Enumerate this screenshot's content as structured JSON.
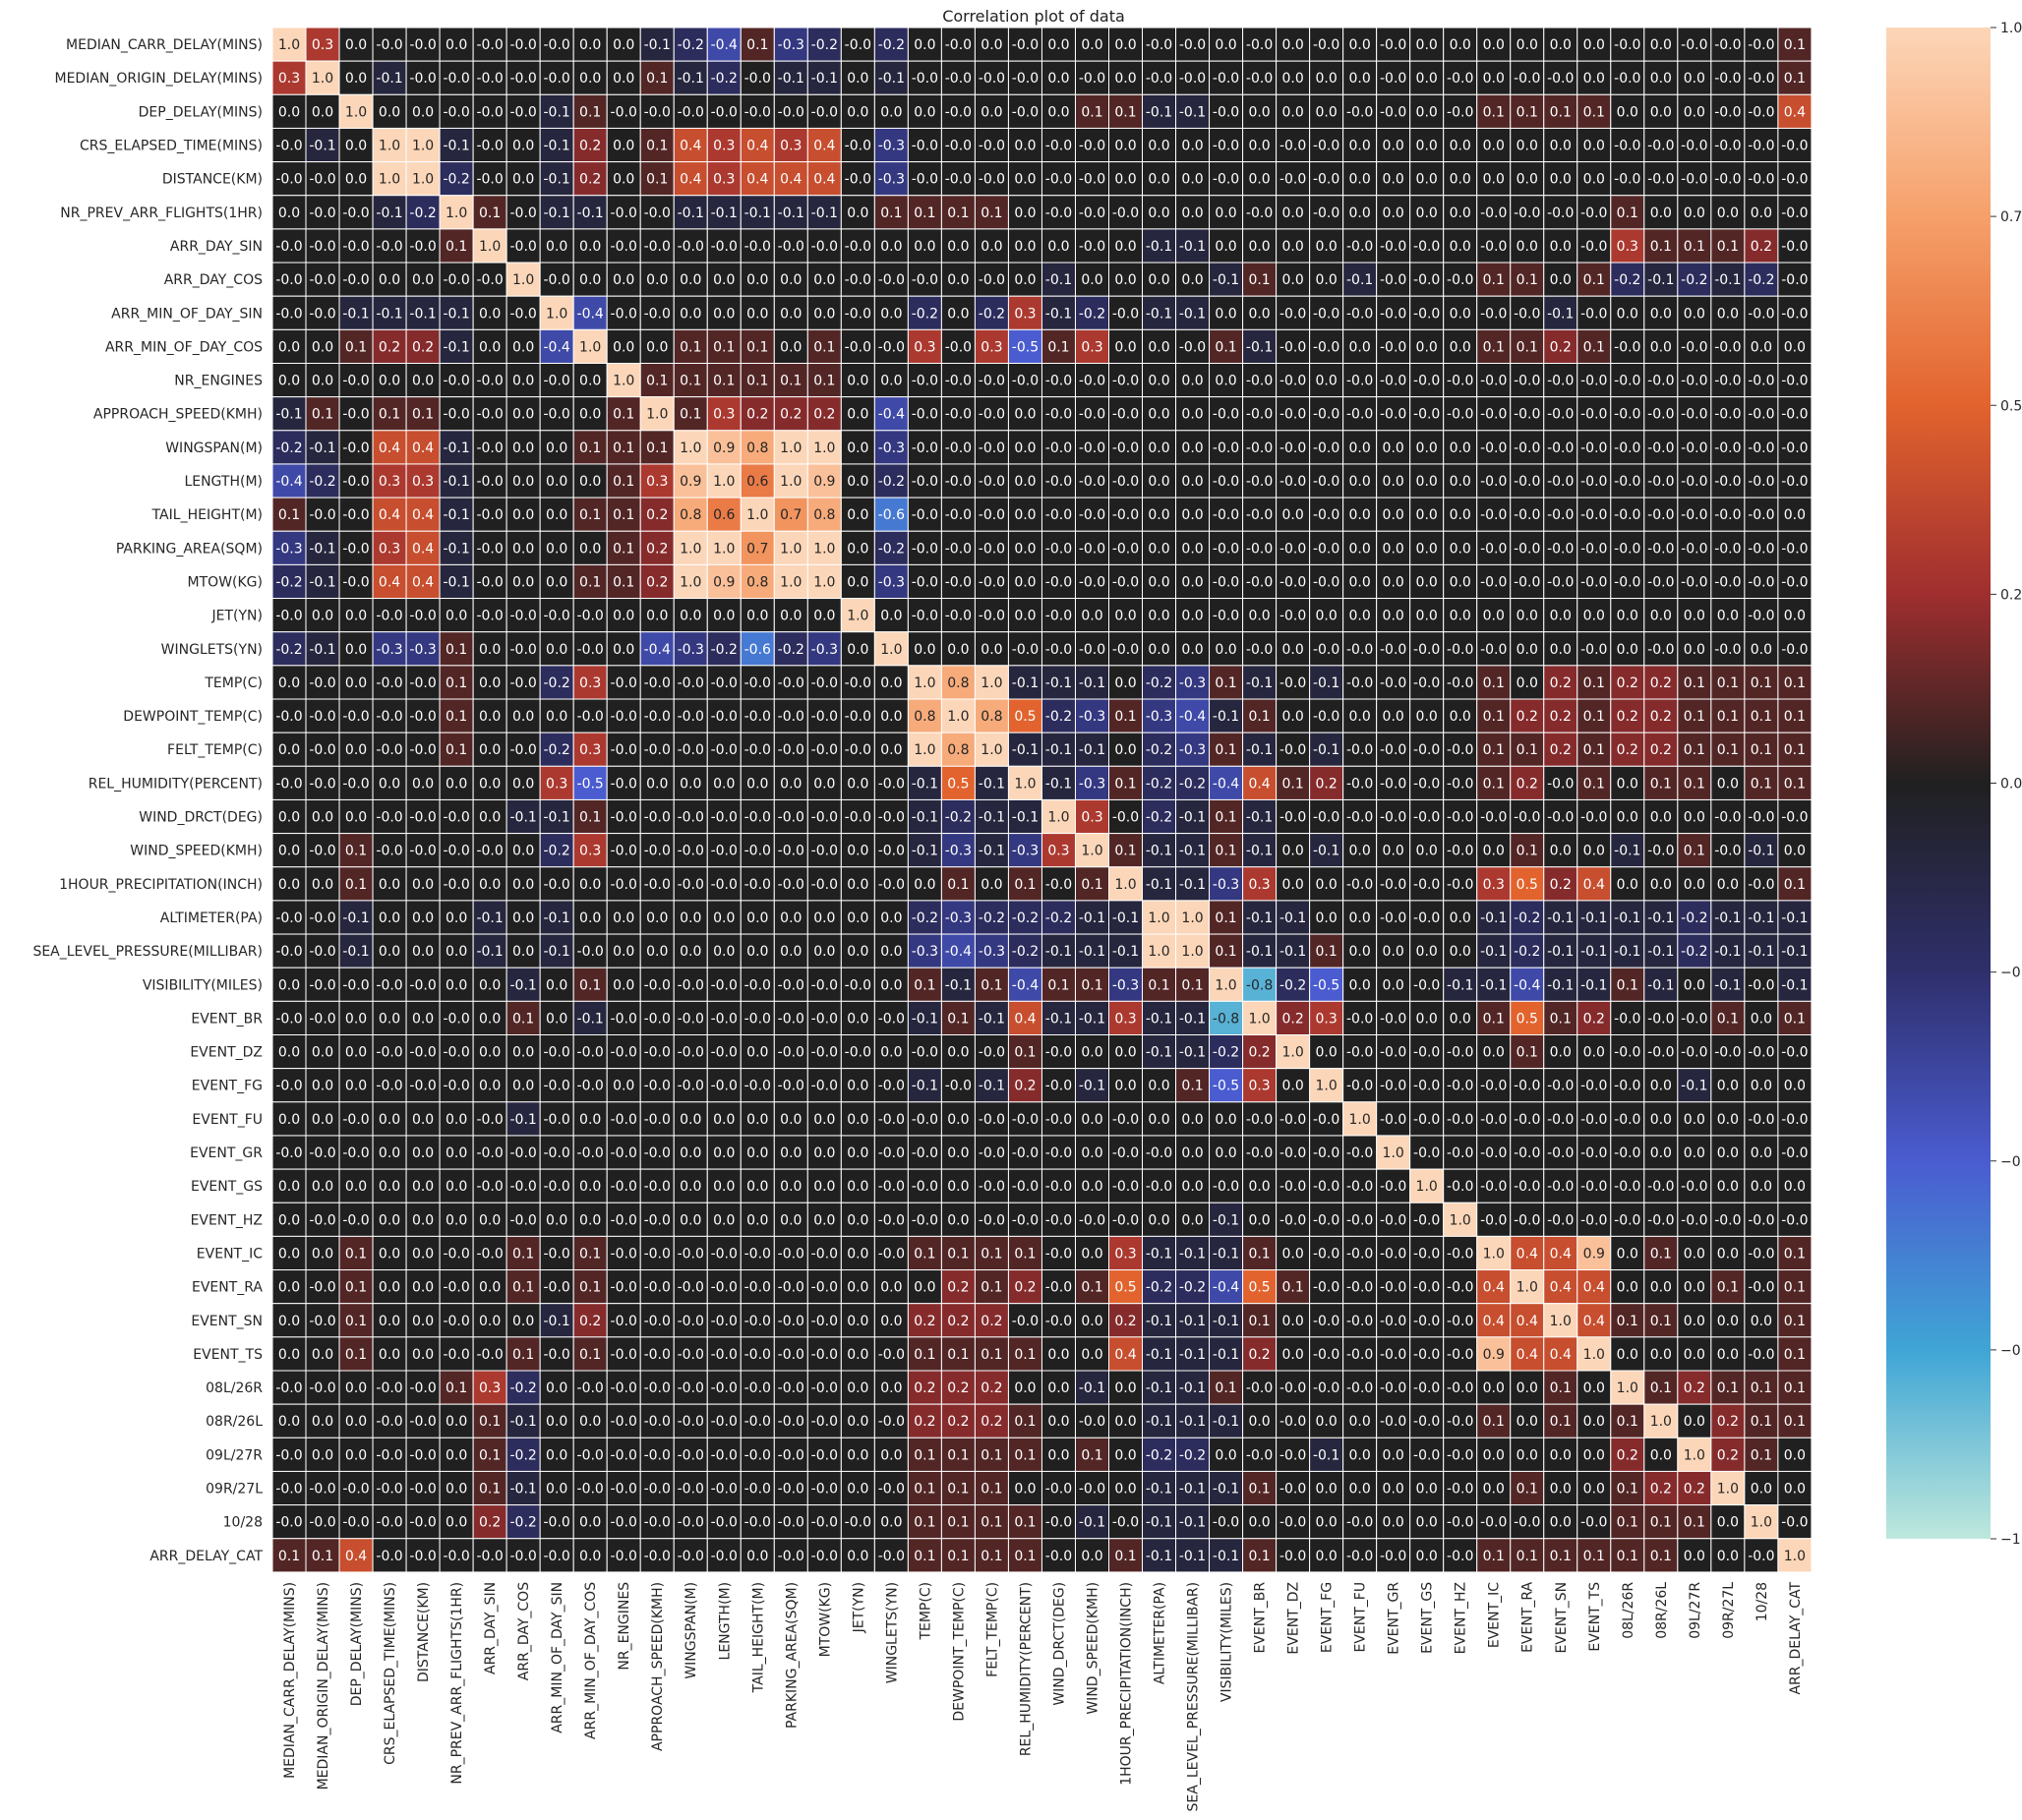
{
  "chart_data": {
    "type": "heatmap",
    "title": "Correlation plot of data",
    "labels": [
      "MEDIAN_CARR_DELAY(MINS)",
      "MEDIAN_ORIGIN_DELAY(MINS)",
      "DEP_DELAY(MINS)",
      "CRS_ELAPSED_TIME(MINS)",
      "DISTANCE(KM)",
      "NR_PREV_ARR_FLIGHTS(1HR)",
      "ARR_DAY_SIN",
      "ARR_DAY_COS",
      "ARR_MIN_OF_DAY_SIN",
      "ARR_MIN_OF_DAY_COS",
      "NR_ENGINES",
      "APPROACH_SPEED(KMH)",
      "WINGSPAN(M)",
      "LENGTH(M)",
      "TAIL_HEIGHT(M)",
      "PARKING_AREA(SQM)",
      "MTOW(KG)",
      "JET(YN)",
      "WINGLETS(YN)",
      "TEMP(C)",
      "DEWPOINT_TEMP(C)",
      "FELT_TEMP(C)",
      "REL_HUMIDITY(PERCENT)",
      "WIND_DRCT(DEG)",
      "WIND_SPEED(KMH)",
      "1HOUR_PRECIPITATION(INCH)",
      "ALTIMETER(PA)",
      "SEA_LEVEL_PRESSURE(MILLIBAR)",
      "VISIBILITY(MILES)",
      "EVENT_BR",
      "EVENT_DZ",
      "EVENT_FG",
      "EVENT_FU",
      "EVENT_GR",
      "EVENT_GS",
      "EVENT_HZ",
      "EVENT_IC",
      "EVENT_RA",
      "EVENT_SN",
      "EVENT_TS",
      "08L/26R",
      "08R/26L",
      "09L/27R",
      "09R/27L",
      "10/28",
      "ARR_DELAY_CAT"
    ],
    "vmin": -1.0,
    "vmax": 1.0,
    "colorbar_ticks": [
      "1.00",
      "0.75",
      "0.50",
      "0.25",
      "0.00",
      "−0.25",
      "−0.50",
      "−0.75",
      "−1.00"
    ],
    "colormap": "icefire",
    "rows": [
      "1.0 0.3 0.0 -0.0 -0.0 0.0 -0.0 -0.0 -0.0 0.0 0.0 -0.1 -0.2 -0.4 0.1 -0.3 -0.2 -0.0 -0.2 0.0 -0.0 0.0 -0.0 0.0 0.0 0.0 -0.0 -0.0 0.0 -0.0 0.0 -0.0 0.0 -0.0 0.0 0.0 0.0 0.0 0.0 0.0 -0.0 0.0 -0.0 -0.0 -0.0 0.1",
      "0.3 1.0 0.0 -0.1 -0.0 -0.0 -0.0 -0.0 -0.0 0.0 0.0 0.1 -0.1 -0.2 -0.0 -0.1 -0.1 0.0 -0.1 -0.0 -0.0 -0.0 -0.0 0.0 -0.0 0.0 -0.0 -0.0 -0.0 -0.0 0.0 0.0 0.0 -0.0 0.0 -0.0 0.0 -0.0 -0.0 0.0 -0.0 0.0 0.0 -0.0 -0.0 0.1",
      "0.0 0.0 1.0 0.0 0.0 -0.0 -0.0 -0.0 -0.1 0.1 -0.0 -0.0 -0.0 -0.0 -0.0 -0.0 -0.0 0.0 0.0 0.0 -0.0 0.0 -0.0 0.0 0.1 0.1 -0.1 -0.1 -0.0 0.0 0.0 0.0 -0.0 -0.0 0.0 -0.0 0.1 0.1 0.1 0.1 0.0 0.0 0.0 -0.0 -0.0 0.4",
      "-0.0 -0.1 0.0 1.0 1.0 -0.1 -0.0 0.0 -0.1 0.2 0.0 0.1 0.4 0.3 0.4 0.3 0.4 -0.0 -0.3 -0.0 -0.0 -0.0 0.0 -0.0 -0.0 0.0 0.0 0.0 -0.0 0.0 -0.0 -0.0 0.0 0.0 0.0 0.0 0.0 0.0 0.0 0.0 -0.0 -0.0 -0.0 -0.0 -0.0 -0.0",
      "-0.0 -0.0 0.0 1.0 1.0 -0.2 -0.0 0.0 -0.1 0.2 0.0 0.1 0.4 0.3 0.4 0.4 0.4 -0.0 -0.3 -0.0 -0.0 -0.0 0.0 -0.0 -0.0 0.0 0.0 0.0 -0.0 0.0 -0.0 -0.0 0.0 0.0 0.0 0.0 0.0 0.0 0.0 0.0 -0.0 -0.0 -0.0 -0.0 -0.0 -0.0",
      "0.0 -0.0 -0.0 -0.1 -0.2 1.0 0.1 -0.0 -0.1 -0.1 -0.0 -0.0 -0.1 -0.1 -0.1 -0.1 -0.1 0.0 0.1 0.1 0.1 0.1 0.0 -0.0 -0.0 -0.0 0.0 0.0 0.0 -0.0 0.0 -0.0 0.0 0.0 0.0 0.0 -0.0 -0.0 -0.0 -0.0 0.1 0.0 0.0 0.0 0.0 -0.0",
      "-0.0 -0.0 -0.0 -0.0 -0.0 0.1 1.0 -0.0 0.0 0.0 -0.0 -0.0 -0.0 -0.0 -0.0 -0.0 -0.0 -0.0 0.0 0.0 0.0 0.0 0.0 0.0 -0.0 0.0 -0.1 -0.1 0.0 0.0 0.0 0.0 -0.0 -0.0 -0.0 0.0 -0.0 0.0 0.0 -0.0 0.3 0.1 0.1 0.1 0.2 -0.0",
      "-0.0 -0.0 -0.0 0.0 0.0 -0.0 -0.0 1.0 -0.0 0.0 0.0 0.0 0.0 0.0 0.0 0.0 0.0 -0.0 -0.0 -0.0 0.0 -0.0 0.0 -0.1 0.0 0.0 0.0 0.0 -0.1 0.1 0.0 0.0 -0.1 -0.0 -0.0 -0.0 0.1 0.1 0.0 0.1 -0.2 -0.1 -0.2 -0.1 -0.2 -0.0",
      "-0.0 -0.0 -0.1 -0.1 -0.1 -0.1 0.0 -0.0 1.0 -0.4 -0.0 -0.0 0.0 0.0 0.0 0.0 0.0 -0.0 0.0 -0.2 0.0 -0.2 0.3 -0.1 -0.2 -0.0 -0.1 -0.1 0.0 0.0 -0.0 -0.0 -0.0 -0.0 -0.0 0.0 -0.0 -0.0 -0.1 -0.0 0.0 0.0 0.0 0.0 -0.0 -0.0",
      "0.0 0.0 0.1 0.2 0.2 -0.1 0.0 0.0 -0.4 1.0 0.0 0.0 0.1 0.1 0.1 0.0 0.1 -0.0 -0.0 0.3 -0.0 0.3 -0.5 0.1 0.3 0.0 0.0 -0.0 0.1 -0.1 -0.0 -0.0 0.0 -0.0 0.0 0.0 0.1 0.1 0.2 0.1 -0.0 0.0 -0.0 -0.0 0.0 0.0",
      "0.0 0.0 -0.0 0.0 0.0 -0.0 -0.0 0.0 -0.0 0.0 1.0 0.1 0.1 0.1 0.1 0.1 0.1 0.0 0.0 -0.0 -0.0 -0.0 -0.0 -0.0 -0.0 -0.0 0.0 0.0 0.0 -0.0 -0.0 0.0 -0.0 -0.0 -0.0 -0.0 -0.0 -0.0 -0.0 -0.0 -0.0 -0.0 -0.0 -0.0 -0.0 -0.0",
      "-0.1 0.1 -0.0 0.1 0.1 -0.0 -0.0 0.0 -0.0 0.0 0.1 1.0 0.1 0.3 0.2 0.2 0.2 0.0 -0.4 -0.0 -0.0 -0.0 0.0 -0.0 -0.0 -0.0 0.0 0.0 -0.0 -0.0 -0.0 -0.0 -0.0 -0.0 -0.0 -0.0 -0.0 -0.0 -0.0 -0.0 -0.0 -0.0 -0.0 -0.0 -0.0 -0.0",
      "-0.2 -0.1 -0.0 0.4 0.4 -0.1 -0.0 0.0 0.0 0.1 0.1 0.1 1.0 0.9 0.8 1.0 1.0 0.0 -0.3 -0.0 -0.0 -0.0 0.0 -0.0 -0.0 -0.0 0.0 0.0 -0.0 -0.0 -0.0 -0.0 0.0 0.0 0.0 0.0 -0.0 -0.0 -0.0 -0.0 -0.0 -0.0 -0.0 -0.0 -0.0 -0.0",
      "-0.4 -0.2 -0.0 0.3 0.3 -0.1 -0.0 0.0 0.0 0.0 0.1 0.3 0.9 1.0 0.6 1.0 0.9 0.0 -0.2 -0.0 -0.0 -0.0 0.0 -0.0 -0.0 -0.0 0.0 0.0 -0.0 -0.0 -0.0 -0.0 0.0 0.0 0.0 0.0 -0.0 -0.0 -0.0 -0.0 -0.0 -0.0 -0.0 -0.0 -0.0 -0.0",
      "0.1 -0.0 -0.0 0.4 0.4 -0.1 -0.0 0.0 0.0 0.1 0.1 0.2 0.8 0.6 1.0 0.7 0.8 0.0 -0.6 -0.0 -0.0 -0.0 0.0 -0.0 -0.0 -0.0 0.0 0.0 -0.0 -0.0 0.0 -0.0 0.0 0.0 0.0 0.0 -0.0 -0.0 -0.0 -0.0 -0.0 -0.0 -0.0 -0.0 -0.0 0.0",
      "-0.3 -0.1 -0.0 0.3 0.4 -0.1 -0.0 0.0 0.0 0.0 0.1 0.2 1.0 1.0 0.7 1.0 1.0 0.0 -0.2 -0.0 -0.0 -0.0 0.0 -0.0 -0.0 -0.0 0.0 0.0 -0.0 -0.0 -0.0 -0.0 0.0 0.0 0.0 0.0 -0.0 -0.0 -0.0 -0.0 -0.0 -0.0 -0.0 -0.0 -0.0 -0.0",
      "-0.2 -0.1 -0.0 0.4 0.4 -0.1 -0.0 0.0 0.0 0.1 0.1 0.2 1.0 0.9 0.8 1.0 1.0 0.0 -0.3 -0.0 -0.0 -0.0 0.0 -0.0 -0.0 -0.0 0.0 0.0 -0.0 -0.0 -0.0 -0.0 0.0 0.0 0.0 0.0 -0.0 -0.0 -0.0 -0.0 -0.0 -0.0 -0.0 -0.0 -0.0 -0.0",
      "-0.0 0.0 0.0 -0.0 -0.0 0.0 -0.0 -0.0 -0.0 -0.0 0.0 0.0 0.0 0.0 0.0 0.0 0.0 1.0 0.0 -0.0 -0.0 -0.0 0.0 -0.0 0.0 0.0 0.0 0.0 -0.0 0.0 -0.0 0.0 0.0 0.0 0.0 0.0 0.0 0.0 0.0 0.0 0.0 0.0 0.0 0.0 -0.0 0.0",
      "-0.2 -0.1 0.0 -0.3 -0.3 0.1 0.0 -0.0 0.0 -0.0 0.0 -0.4 -0.3 -0.2 -0.6 -0.2 -0.3 0.0 1.0 0.0 0.0 0.0 -0.0 -0.0 -0.0 -0.0 0.0 0.0 0.0 -0.0 0.0 -0.0 -0.0 -0.0 -0.0 -0.0 -0.0 0.0 0.0 -0.0 0.0 -0.0 0.0 -0.0 0.0 -0.0",
      "0.0 -0.0 0.0 -0.0 -0.0 0.1 0.0 -0.0 -0.2 0.3 -0.0 -0.0 -0.0 -0.0 -0.0 -0.0 -0.0 -0.0 0.0 1.0 0.8 1.0 -0.1 -0.1 -0.1 0.0 -0.2 -0.3 0.1 -0.1 -0.0 -0.1 -0.0 -0.0 -0.0 -0.0 0.1 0.0 0.2 0.1 0.2 0.2 0.1 0.1 0.1 0.1",
      "-0.0 -0.0 -0.0 -0.0 -0.0 0.1 0.0 0.0 0.0 -0.0 -0.0 -0.0 -0.0 -0.0 -0.0 -0.0 -0.0 -0.0 0.0 0.8 1.0 0.8 0.5 -0.2 -0.3 0.1 -0.3 -0.4 -0.1 0.1 0.0 -0.0 0.0 0.0 0.0 0.0 0.1 0.2 0.2 0.1 0.2 0.2 0.1 0.1 0.1 0.1",
      "0.0 -0.0 0.0 -0.0 -0.0 0.1 0.0 -0.0 -0.2 0.3 -0.0 -0.0 -0.0 -0.0 -0.0 -0.0 -0.0 -0.0 0.0 1.0 0.8 1.0 -0.1 -0.1 -0.1 0.0 -0.2 -0.3 0.1 -0.1 -0.0 -0.1 -0.0 -0.0 -0.0 -0.0 0.1 0.1 0.2 0.1 0.2 0.2 0.1 0.1 0.1 0.1",
      "-0.0 -0.0 -0.0 0.0 0.0 0.0 0.0 0.0 0.3 -0.5 -0.0 0.0 0.0 0.0 0.0 0.0 0.0 0.0 -0.0 -0.1 0.5 -0.1 1.0 -0.1 -0.3 0.1 -0.2 -0.2 -0.4 0.4 0.1 0.2 -0.0 -0.0 -0.0 -0.0 0.1 0.2 -0.0 0.1 0.0 0.1 0.1 0.0 0.1 0.1",
      "0.0 0.0 0.0 -0.0 -0.0 -0.0 0.0 -0.1 -0.1 0.1 -0.0 -0.0 -0.0 -0.0 -0.0 -0.0 -0.0 -0.0 -0.0 -0.1 -0.2 -0.1 -0.1 1.0 0.3 -0.0 -0.2 -0.1 0.1 -0.1 -0.0 -0.0 -0.0 -0.0 -0.0 -0.0 -0.0 -0.0 -0.0 -0.0 0.0 0.0 0.0 -0.0 -0.0 -0.0",
      "0.0 -0.0 0.1 -0.0 -0.0 -0.0 -0.0 0.0 -0.2 0.3 -0.0 -0.0 -0.0 -0.0 -0.0 -0.0 -0.0 0.0 -0.0 -0.1 -0.3 -0.1 -0.3 0.3 1.0 0.1 -0.1 -0.1 0.1 -0.1 0.0 -0.1 0.0 0.0 0.0 -0.0 0.0 0.1 0.0 0.0 -0.1 -0.0 0.1 -0.0 -0.1 0.0",
      "0.0 0.0 0.1 0.0 0.0 -0.0 0.0 0.0 -0.0 0.0 -0.0 -0.0 -0.0 -0.0 -0.0 -0.0 -0.0 0.0 -0.0 0.0 0.1 0.0 0.1 -0.0 0.1 1.0 -0.1 -0.1 -0.3 0.3 0.0 0.0 -0.0 -0.0 -0.0 -0.0 0.3 0.5 0.2 0.4 0.0 0.0 0.0 0.0 -0.0 0.1",
      "-0.0 -0.0 -0.1 0.0 0.0 0.0 -0.1 0.0 -0.1 0.0 0.0 0.0 0.0 0.0 0.0 0.0 0.0 0.0 0.0 -0.2 -0.3 -0.2 -0.2 -0.2 -0.1 -0.1 1.0 1.0 0.1 -0.1 -0.1 0.0 0.0 -0.0 -0.0 0.0 -0.1 -0.2 -0.1 -0.1 -0.1 -0.1 -0.2 -0.1 -0.1 -0.1",
      "-0.0 -0.0 -0.1 0.0 0.0 0.0 -0.1 0.0 -0.1 -0.0 0.0 0.0 0.0 0.0 0.0 0.0 0.0 0.0 0.0 -0.3 -0.4 -0.3 -0.2 -0.1 -0.1 -0.1 1.0 1.0 0.1 -0.1 -0.1 0.1 0.0 0.0 0.0 0.0 -0.1 -0.2 -0.1 -0.1 -0.1 -0.1 -0.2 -0.1 -0.1 -0.1",
      "0.0 -0.0 -0.0 -0.0 -0.0 0.0 0.0 -0.1 0.0 0.1 0.0 -0.0 -0.0 -0.0 -0.0 -0.0 -0.0 -0.0 0.0 0.1 -0.1 0.1 -0.4 0.1 0.1 -0.3 0.1 0.1 1.0 -0.8 -0.2 -0.5 0.0 0.0 -0.0 -0.1 -0.1 -0.4 -0.1 -0.1 0.1 -0.1 0.0 -0.1 -0.0 -0.1",
      "-0.0 -0.0 0.0 0.0 0.0 -0.0 0.0 0.1 0.0 -0.1 -0.0 -0.0 -0.0 -0.0 -0.0 -0.0 -0.0 0.0 -0.0 -0.1 0.1 -0.1 0.4 -0.1 -0.1 0.3 -0.1 -0.1 -0.8 1.0 0.2 0.3 -0.0 -0.0 0.0 0.0 0.1 0.5 0.1 0.2 -0.0 -0.0 -0.0 0.1 0.0 0.1",
      "0.0 0.0 0.0 -0.0 -0.0 -0.0 0.0 0.0 -0.0 -0.0 -0.0 -0.0 -0.0 -0.0 0.0 -0.0 -0.0 -0.0 0.0 -0.0 0.0 -0.0 0.1 -0.0 0.0 0.0 -0.1 -0.1 -0.2 0.2 1.0 0.0 -0.0 -0.0 -0.0 -0.0 0.0 0.1 0.0 0.0 -0.0 -0.0 -0.0 -0.0 -0.0 -0.0",
      "-0.0 0.0 0.0 -0.0 -0.0 -0.0 0.0 0.0 -0.0 -0.0 0.0 -0.0 -0.0 -0.0 -0.0 -0.0 -0.0 0.0 -0.0 -0.1 -0.0 -0.1 0.2 -0.0 -0.1 0.0 0.0 0.1 -0.5 0.3 0.0 1.0 -0.0 -0.0 -0.0 -0.0 -0.0 -0.0 -0.0 -0.0 -0.0 0.0 -0.1 0.0 0.0 0.0",
      "0.0 0.0 -0.0 0.0 0.0 0.0 -0.0 -0.1 -0.0 0.0 -0.0 -0.0 0.0 0.0 0.0 0.0 0.0 0.0 -0.0 -0.0 0.0 -0.0 -0.0 -0.0 0.0 -0.0 0.0 0.0 0.0 -0.0 -0.0 -0.0 1.0 -0.0 -0.0 -0.0 -0.0 -0.0 -0.0 -0.0 -0.0 0.0 0.0 0.0 -0.0 -0.0",
      "-0.0 -0.0 -0.0 0.0 0.0 0.0 -0.0 -0.0 -0.0 -0.0 -0.0 -0.0 0.0 0.0 0.0 0.0 0.0 0.0 -0.0 -0.0 0.0 -0.0 -0.0 -0.0 0.0 -0.0 -0.0 0.0 0.0 -0.0 -0.0 -0.0 -0.0 1.0 -0.0 -0.0 -0.0 -0.0 -0.0 -0.0 -0.0 0.0 0.0 0.0 0.0 -0.0",
      "0.0 0.0 0.0 0.0 0.0 0.0 -0.0 -0.0 -0.0 0.0 -0.0 -0.0 0.0 0.0 0.0 0.0 0.0 0.0 -0.0 -0.0 0.0 -0.0 -0.0 -0.0 0.0 -0.0 -0.0 0.0 -0.0 0.0 -0.0 -0.0 -0.0 -0.0 1.0 -0.0 -0.0 -0.0 -0.0 -0.0 -0.0 -0.0 -0.0 0.0 0.0 0.0",
      "0.0 -0.0 -0.0 0.0 0.0 0.0 0.0 -0.0 0.0 0.0 -0.0 -0.0 0.0 0.0 0.0 0.0 0.0 0.0 -0.0 -0.0 0.0 -0.0 -0.0 -0.0 -0.0 -0.0 0.0 0.0 -0.1 0.0 -0.0 -0.0 -0.0 -0.0 -0.0 1.0 -0.0 -0.0 -0.0 -0.0 -0.0 -0.0 -0.0 -0.0 -0.0 -0.0",
      "0.0 0.0 0.1 0.0 0.0 -0.0 -0.0 0.1 -0.0 0.1 -0.0 -0.0 -0.0 -0.0 -0.0 -0.0 -0.0 0.0 -0.0 0.1 0.1 0.1 0.1 -0.0 0.0 0.3 -0.1 -0.1 -0.1 0.1 0.0 -0.0 -0.0 -0.0 -0.0 -0.0 1.0 0.4 0.4 0.9 0.0 0.1 0.0 0.0 -0.0 0.1",
      "0.0 -0.0 0.1 0.0 0.0 -0.0 0.0 0.1 -0.0 0.1 -0.0 -0.0 -0.0 -0.0 -0.0 -0.0 -0.0 0.0 0.0 0.0 0.2 0.1 0.2 -0.0 0.1 0.5 -0.2 -0.2 -0.4 0.5 0.1 -0.0 -0.0 -0.0 -0.0 -0.0 0.4 1.0 0.4 0.4 0.0 0.0 0.0 0.1 -0.0 0.1",
      "0.0 -0.0 0.1 0.0 0.0 -0.0 0.0 0.0 -0.1 0.2 -0.0 -0.0 -0.0 -0.0 -0.0 -0.0 -0.0 0.0 0.0 0.2 0.2 0.2 -0.0 -0.0 0.0 0.2 -0.1 -0.1 -0.1 0.1 0.0 -0.0 -0.0 -0.0 -0.0 -0.0 0.4 0.4 1.0 0.4 0.1 0.1 0.0 0.0 0.0 0.1",
      "0.0 0.0 0.1 0.0 0.0 -0.0 -0.0 0.1 -0.0 0.1 -0.0 -0.0 -0.0 -0.0 -0.0 -0.0 -0.0 0.0 -0.0 0.1 0.1 0.1 0.1 0.0 0.0 0.4 -0.1 -0.1 -0.1 0.2 0.0 -0.0 -0.0 -0.0 -0.0 -0.0 0.9 0.4 0.4 1.0 0.0 0.0 0.0 0.0 -0.0 0.1",
      "-0.0 -0.0 0.0 -0.0 -0.0 0.1 0.3 -0.2 0.0 -0.0 -0.0 -0.0 -0.0 -0.0 -0.0 -0.0 -0.0 0.0 0.0 0.2 0.2 0.2 0.0 0.0 -0.1 0.0 -0.1 -0.1 0.1 -0.0 -0.0 -0.0 -0.0 -0.0 -0.0 -0.0 0.0 0.0 0.1 0.0 1.0 0.1 0.2 0.1 0.1 0.1",
      "0.0 0.0 0.0 -0.0 -0.0 0.0 0.1 -0.1 0.0 0.0 -0.0 -0.0 -0.0 -0.0 -0.0 -0.0 -0.0 0.0 -0.0 0.2 0.2 0.2 0.1 0.0 -0.0 0.0 -0.1 -0.1 -0.1 0.0 -0.0 0.0 0.0 -0.0 -0.0 -0.0 0.1 0.0 0.1 0.0 0.1 1.0 0.0 0.2 0.1 0.1",
      "-0.0 0.0 0.0 -0.0 -0.0 0.0 0.1 -0.2 0.0 -0.0 -0.0 -0.0 -0.0 -0.0 -0.0 -0.0 -0.0 0.0 0.0 0.1 0.1 0.1 0.1 0.0 0.1 0.0 -0.2 -0.2 0.0 -0.0 -0.0 -0.1 0.0 0.0 -0.0 -0.0 0.0 0.0 0.0 0.0 0.2 0.0 1.0 0.2 0.1 0.0",
      "-0.0 -0.0 -0.0 -0.0 -0.0 0.0 0.1 -0.1 0.0 -0.0 -0.0 -0.0 -0.0 -0.0 -0.0 -0.0 -0.0 0.0 -0.0 0.1 0.1 0.1 0.0 -0.0 -0.0 0.0 -0.1 -0.1 -0.1 0.1 -0.0 0.0 0.0 0.0 0.0 -0.0 0.0 0.1 0.0 0.0 0.1 0.2 0.2 1.0 0.0 0.0",
      "-0.0 -0.0 -0.0 -0.0 -0.0 0.0 0.2 -0.2 -0.0 0.0 -0.0 -0.0 -0.0 -0.0 -0.0 -0.0 -0.0 -0.0 0.0 0.1 0.1 0.1 0.1 -0.0 -0.1 -0.0 -0.1 -0.1 -0.0 0.0 -0.0 0.0 -0.0 0.0 0.0 -0.0 -0.0 -0.0 0.0 -0.0 0.1 0.1 0.1 0.0 1.0 -0.0",
      "0.1 0.1 0.4 -0.0 -0.0 -0.0 -0.0 -0.0 -0.0 0.0 -0.0 -0.0 -0.0 -0.0 0.0 -0.0 -0.0 0.0 -0.0 0.1 0.1 0.1 0.1 -0.0 0.0 0.1 -0.1 -0.1 -0.1 0.1 -0.0 0.0 -0.0 -0.0 0.0 -0.0 0.1 0.1 0.1 0.1 0.1 0.1 0.0 0.0 -0.0 1.0"
    ]
  }
}
